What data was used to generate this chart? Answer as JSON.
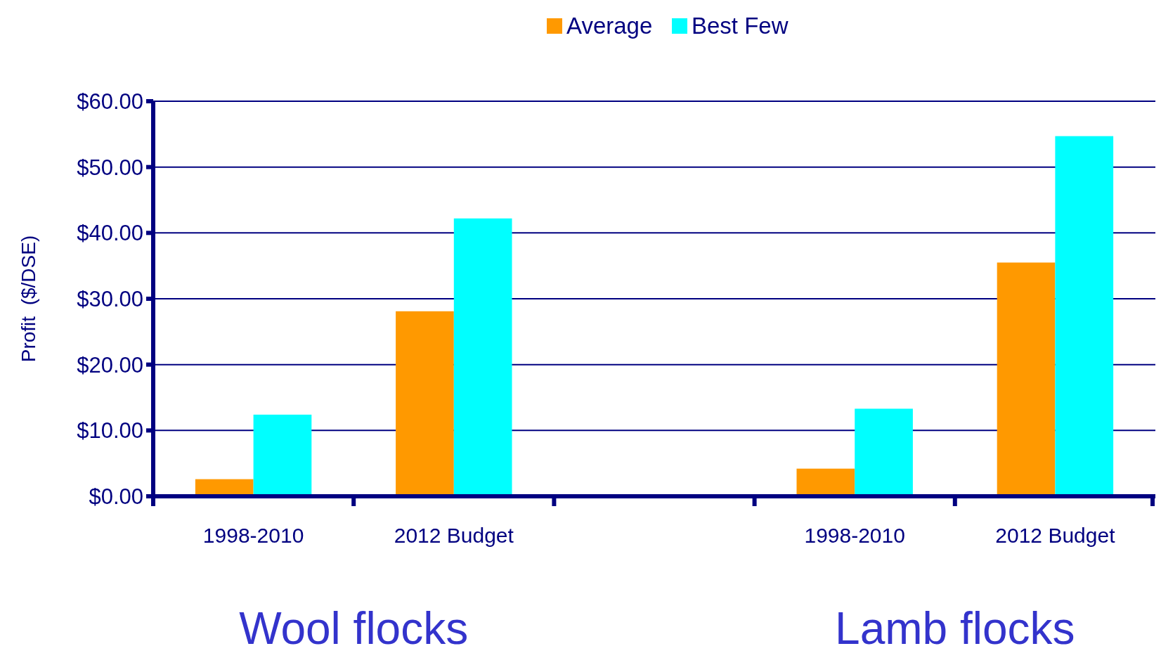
{
  "chart_data": {
    "type": "bar",
    "ylabel": "Profit  ($/DSE)",
    "categories": [
      "1998-2010",
      "2012 Budget",
      null,
      "1998-2010",
      "2012 Budget"
    ],
    "series": [
      {
        "name": "Average",
        "color": "#ff9900",
        "values": [
          2.6,
          28.1,
          null,
          4.2,
          35.5
        ]
      },
      {
        "name": "Best Few",
        "color": "#00ffff",
        "values": [
          12.4,
          42.2,
          null,
          13.3,
          54.7
        ]
      }
    ],
    "ylim": [
      0,
      60
    ],
    "yticks": [
      {
        "value": 0,
        "label": "$0.00"
      },
      {
        "value": 10,
        "label": "$10.00"
      },
      {
        "value": 20,
        "label": "$20.00"
      },
      {
        "value": 30,
        "label": "$30.00"
      },
      {
        "value": 40,
        "label": "$40.00"
      },
      {
        "value": 50,
        "label": "$50.00"
      },
      {
        "value": 60,
        "label": "$60.00"
      }
    ],
    "grid": "y",
    "legend": "top",
    "annotations": [
      "Wool flocks",
      "Lamb flocks"
    ]
  }
}
